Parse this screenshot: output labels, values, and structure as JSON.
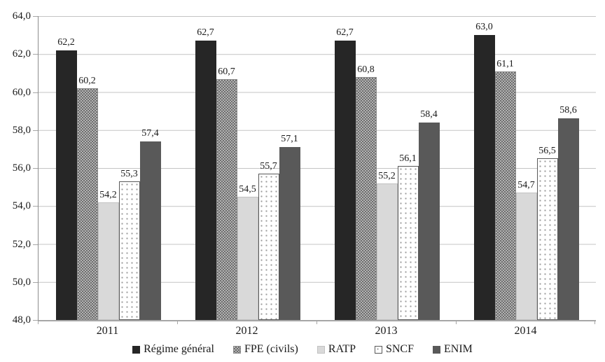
{
  "chart_data": {
    "type": "bar",
    "title": "",
    "categories": [
      "2011",
      "2012",
      "2013",
      "2014"
    ],
    "series": [
      {
        "name": "Régime général",
        "pattern": "solid-black",
        "values": [
          62.2,
          62.7,
          62.7,
          63.0
        ]
      },
      {
        "name": "FPE (civils)",
        "pattern": "checker-gray",
        "values": [
          60.2,
          60.7,
          60.8,
          61.1
        ]
      },
      {
        "name": "RATP",
        "pattern": "solid-lightgray",
        "values": [
          54.2,
          54.5,
          55.2,
          54.7
        ]
      },
      {
        "name": "SNCF",
        "pattern": "dotted-white",
        "values": [
          55.3,
          55.7,
          56.1,
          56.5
        ]
      },
      {
        "name": "ENIM",
        "pattern": "solid-darkgray",
        "values": [
          57.4,
          57.1,
          58.4,
          58.6
        ]
      }
    ],
    "ylim": [
      48.0,
      64.0
    ],
    "ytick_step": 2.0,
    "ytick_labels": [
      "64,0",
      "62,0",
      "60,0",
      "58,0",
      "56,0",
      "54,0",
      "52,0",
      "50,0",
      "48,0"
    ],
    "decimal_separator": ",",
    "grid": true,
    "legend_position": "bottom",
    "value_labels_shown": true,
    "colors": {
      "regime": "#262626",
      "fpe_dark": "#6e6e6e",
      "fpe_light": "#b3b3b3",
      "fpe_border": "#8c8c8c",
      "ratp": "#d9d9d9",
      "ratp_border": "#c2c2c2",
      "sncf_bg": "#ffffff",
      "sncf_dot": "#9c9c9c",
      "sncf_border": "#595959",
      "enim": "#595959",
      "grid": "#c4c4c4",
      "axis": "#a6a6a6",
      "text": "#1a1a1a"
    }
  }
}
